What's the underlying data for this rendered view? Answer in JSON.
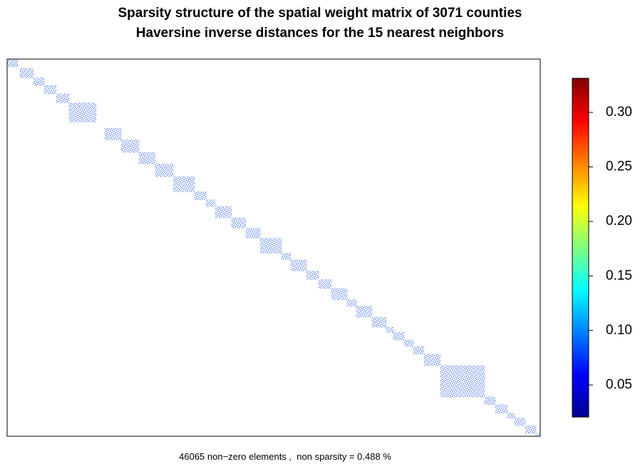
{
  "chart_data": {
    "type": "sparsity",
    "title": "Sparsity structure of the spatial weight matrix of 3071 counties",
    "subtitle": "Haversine inverse distances for the 15 nearest neighbors",
    "caption": "46065 non−zero elements ,  non sparsity = 0.488 %",
    "xlim": [
      0,
      3071
    ],
    "ylim": [
      0,
      3071
    ],
    "color": "#2f62e6",
    "blocks": [
      {
        "start": 0,
        "size": 62
      },
      {
        "start": 74,
        "size": 78
      },
      {
        "start": 152,
        "size": 62
      },
      {
        "start": 214,
        "size": 69
      },
      {
        "start": 283,
        "size": 74
      },
      {
        "start": 357,
        "size": 156
      },
      {
        "start": 563,
        "size": 94
      },
      {
        "start": 657,
        "size": 103
      },
      {
        "start": 760,
        "size": 94
      },
      {
        "start": 854,
        "size": 103
      },
      {
        "start": 957,
        "size": 123
      },
      {
        "start": 1080,
        "size": 66
      },
      {
        "start": 1146,
        "size": 53
      },
      {
        "start": 1199,
        "size": 94
      },
      {
        "start": 1293,
        "size": 83
      },
      {
        "start": 1376,
        "size": 82
      },
      {
        "start": 1458,
        "size": 123
      },
      {
        "start": 1581,
        "size": 53
      },
      {
        "start": 1634,
        "size": 91
      },
      {
        "start": 1725,
        "size": 69
      },
      {
        "start": 1794,
        "size": 74
      },
      {
        "start": 1868,
        "size": 91
      },
      {
        "start": 1959,
        "size": 53
      },
      {
        "start": 2012,
        "size": 90
      },
      {
        "start": 2102,
        "size": 82
      },
      {
        "start": 2184,
        "size": 41
      },
      {
        "start": 2225,
        "size": 62
      },
      {
        "start": 2287,
        "size": 53
      },
      {
        "start": 2340,
        "size": 62
      },
      {
        "start": 2402,
        "size": 94
      },
      {
        "start": 2496,
        "size": 255
      },
      {
        "start": 2751,
        "size": 62
      },
      {
        "start": 2813,
        "size": 69
      },
      {
        "start": 2882,
        "size": 41
      },
      {
        "start": 2923,
        "size": 62
      },
      {
        "start": 2985,
        "size": 62
      },
      {
        "start": 3047,
        "size": 24
      }
    ],
    "colorbar": {
      "lim": [
        0.0206,
        0.3313
      ],
      "ticks": [
        {
          "value": 0.05,
          "label": "0.05"
        },
        {
          "value": 0.1,
          "label": "0.10"
        },
        {
          "value": 0.15,
          "label": "0.15"
        },
        {
          "value": 0.2,
          "label": "0.20"
        },
        {
          "value": 0.25,
          "label": "0.25"
        },
        {
          "value": 0.3,
          "label": "0.30"
        }
      ],
      "colormap": [
        "#00008f",
        "#0000ff",
        "#0080ff",
        "#00ffff",
        "#80ff80",
        "#ffff00",
        "#ff8000",
        "#ff0000",
        "#800000"
      ]
    }
  }
}
